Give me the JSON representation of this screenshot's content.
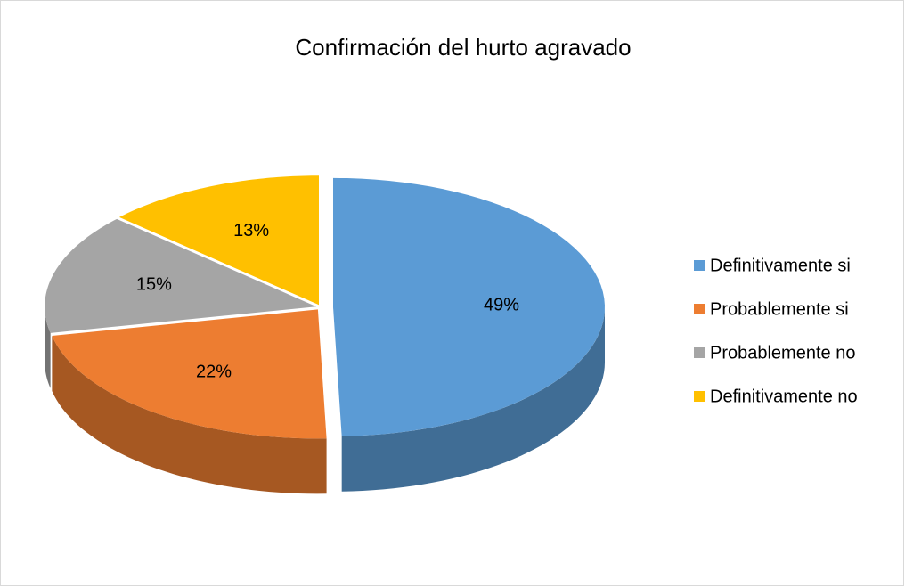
{
  "chart_data": {
    "type": "pie",
    "title": "Confirmación del hurto agravado",
    "categories": [
      "Definitivamente si",
      "Probablemente si",
      "Probablemente no",
      "Definitivamente no"
    ],
    "values": [
      49,
      22,
      15,
      13
    ],
    "value_labels": [
      "49%",
      "22%",
      "15%",
      "13%"
    ],
    "colors": [
      "#5b9bd5",
      "#ed7d31",
      "#a5a5a5",
      "#ffc000"
    ],
    "legend": "right"
  }
}
